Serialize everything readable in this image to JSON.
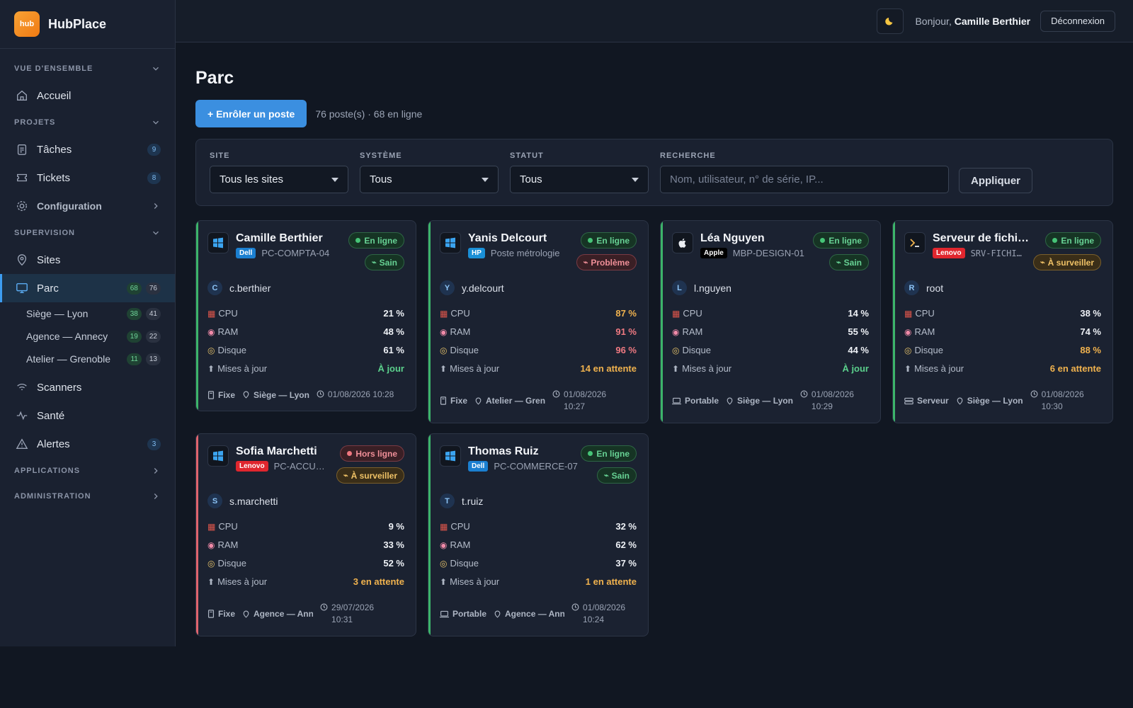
{
  "app": {
    "logo_text": "hub",
    "name": "HubPlace"
  },
  "sidebar": {
    "sections": {
      "overview": "VUE D'ENSEMBLE",
      "projects": "PROJETS",
      "supervision": "SUPERVISION",
      "applications": "APPLICATIONS",
      "administration": "ADMINISTRATION"
    },
    "items": {
      "home": {
        "label": "Accueil"
      },
      "tasks": {
        "label": "Tâches",
        "badge": "9"
      },
      "tickets": {
        "label": "Tickets",
        "badge": "8"
      },
      "config": {
        "label": "Configuration"
      },
      "sites": {
        "label": "Sites"
      },
      "parc": {
        "label": "Parc",
        "badge_online": "68",
        "badge_total": "76"
      },
      "scanners": {
        "label": "Scanners"
      },
      "health": {
        "label": "Santé"
      },
      "alerts": {
        "label": "Alertes",
        "badge": "3"
      }
    },
    "sub_sites": [
      {
        "label": "Siège — Lyon",
        "online": "38",
        "total": "41"
      },
      {
        "label": "Agence — Annecy",
        "online": "19",
        "total": "22"
      },
      {
        "label": "Atelier — Grenoble",
        "online": "11",
        "total": "13"
      }
    ]
  },
  "topbar": {
    "greeting": "Bonjour,",
    "user": "Camille Berthier",
    "logout": "Déconnexion"
  },
  "page": {
    "title": "Parc",
    "enroll_button": "+ Enrôler un poste",
    "summary": "76 poste(s) · 68 en ligne"
  },
  "filters": {
    "site": {
      "label": "SITE",
      "value": "Tous les sites"
    },
    "system": {
      "label": "SYSTÈME",
      "value": "Tous"
    },
    "status": {
      "label": "STATUT",
      "value": "Tous"
    },
    "search": {
      "label": "RECHERCHE",
      "placeholder": "Nom, utilisateur, n° de série, IP..."
    },
    "apply": "Appliquer"
  },
  "metric_labels": {
    "cpu": "CPU",
    "ram": "RAM",
    "disk": "Disque",
    "updates": "Mises à jour"
  },
  "devices": [
    {
      "name": "Camille Berthier",
      "brand": "Dell",
      "host": "PC-COMPTA-04",
      "status": "En ligne",
      "health": "Sain",
      "user_initial": "C",
      "user": "c.berthier",
      "cpu": "21 %",
      "ram": "48 %",
      "disk": "61 %",
      "updates": "À jour",
      "type": "Fixe",
      "site": "Siège — Lyon",
      "time1": "01/08/2026 10:28",
      "time2": ""
    },
    {
      "name": "Yanis Delcourt",
      "brand": "HP",
      "host": "Poste métrologie",
      "status": "En ligne",
      "health": "Problème",
      "user_initial": "Y",
      "user": "y.delcourt",
      "cpu": "87 %",
      "ram": "91 %",
      "disk": "96 %",
      "updates": "14 en attente",
      "type": "Fixe",
      "site": "Atelier — Grenoble",
      "time1": "01/08/2026",
      "time2": "10:27"
    },
    {
      "name": "Léa Nguyen",
      "brand": "Apple",
      "host": "MBP-DESIGN-01",
      "status": "En ligne",
      "health": "Sain",
      "user_initial": "L",
      "user": "l.nguyen",
      "cpu": "14 %",
      "ram": "55 %",
      "disk": "44 %",
      "updates": "À jour",
      "type": "Portable",
      "site": "Siège — Lyon",
      "time1": "01/08/2026",
      "time2": "10:29"
    },
    {
      "name": "Serveur de fichiers",
      "brand": "Lenovo",
      "host": "SRV-FICHIERS",
      "status": "En ligne",
      "health": "À surveiller",
      "user_initial": "R",
      "user": "root",
      "cpu": "38 %",
      "ram": "74 %",
      "disk": "88 %",
      "updates": "6 en attente",
      "type": "Serveur",
      "site": "Siège — Lyon",
      "time1": "01/08/2026",
      "time2": "10:30"
    },
    {
      "name": "Sofia Marchetti",
      "brand": "Lenovo",
      "host": "PC-ACCUEIL",
      "status": "Hors ligne",
      "health": "À surveiller",
      "user_initial": "S",
      "user": "s.marchetti",
      "cpu": "9 %",
      "ram": "33 %",
      "disk": "52 %",
      "updates": "3 en attente",
      "type": "Fixe",
      "site": "Agence — Annecy",
      "time1": "29/07/2026",
      "time2": "10:31"
    },
    {
      "name": "Thomas Ruiz",
      "brand": "Dell",
      "host": "PC-COMMERCE-07",
      "status": "En ligne",
      "health": "Sain",
      "user_initial": "T",
      "user": "t.ruiz",
      "cpu": "32 %",
      "ram": "62 %",
      "disk": "37 %",
      "updates": "1 en attente",
      "type": "Portable",
      "site": "Agence — Annecy",
      "time1": "01/08/2026",
      "time2": "10:24"
    }
  ],
  "colors": {
    "accent": "#3b8fe0",
    "online": "#46c477",
    "offline": "#f07780",
    "warn": "#f0b24e",
    "brand_dell": "#1b7fd0",
    "brand_hp": "#1a8fd6",
    "brand_lenovo": "#e0262e",
    "brand_apple": "#000000"
  }
}
